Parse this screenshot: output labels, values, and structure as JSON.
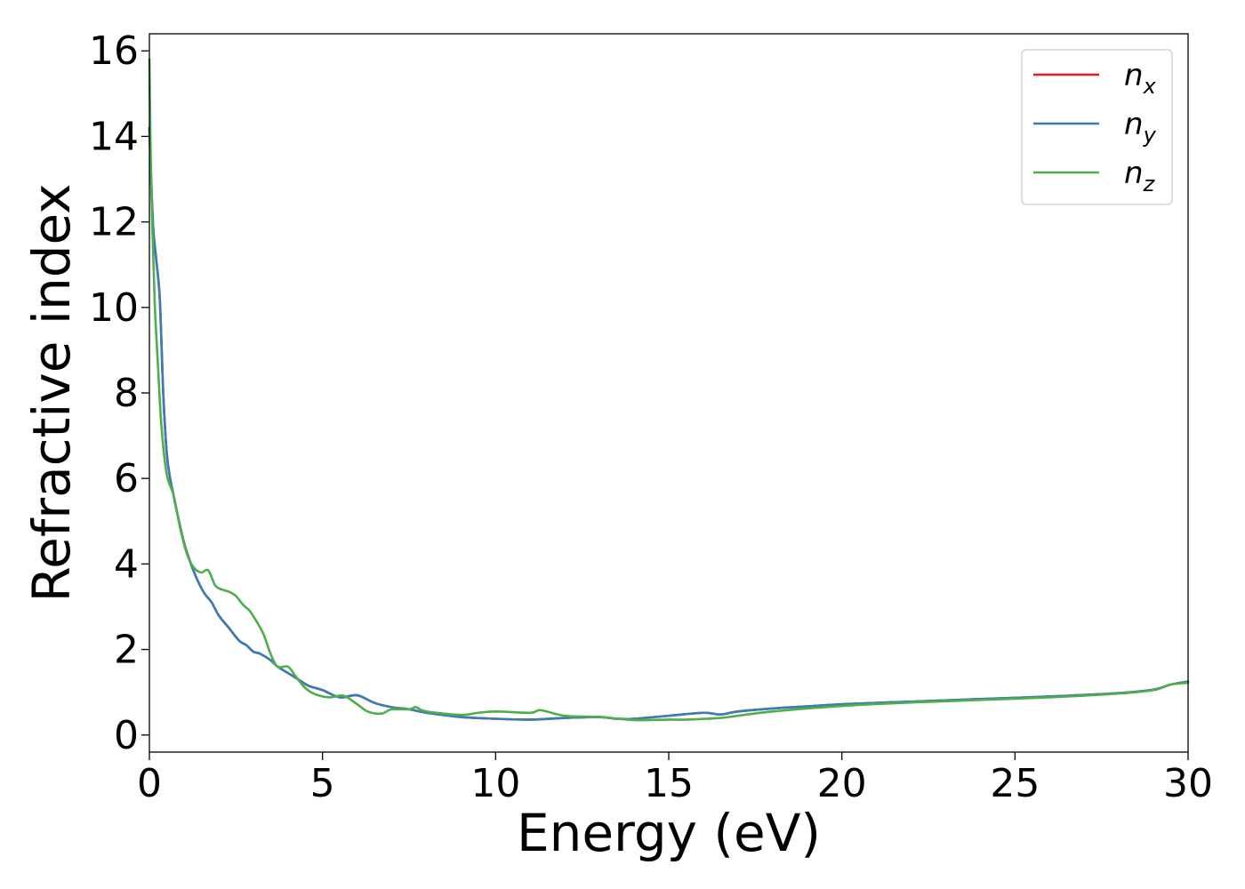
{
  "chart_data": {
    "type": "line",
    "xlabel": "Energy (eV)",
    "ylabel": "Refractive index",
    "xlim": [
      0,
      30
    ],
    "ylim": [
      -0.4,
      16.4
    ],
    "xticks": [
      0,
      5,
      10,
      15,
      20,
      25,
      30
    ],
    "yticks": [
      0,
      2,
      4,
      6,
      8,
      10,
      12,
      14,
      16
    ],
    "grid": false,
    "legend_position": "top-right",
    "series": [
      {
        "name": "n_x",
        "label_base": "n",
        "label_sub": "x",
        "color": "#e41a1c",
        "x": [
          0.0,
          0.1,
          0.2,
          0.3,
          0.4,
          0.5,
          0.6,
          0.7,
          0.8,
          1.0,
          1.2,
          1.4,
          1.6,
          1.8,
          2.0,
          2.3,
          2.6,
          2.8,
          3.0,
          3.2,
          3.5,
          3.7,
          4.0,
          4.3,
          4.6,
          5.0,
          5.5,
          6.0,
          6.5,
          7.0,
          7.5,
          8.0,
          9.0,
          10.0,
          11.0,
          12.0,
          13.0,
          13.5,
          14.0,
          15.0,
          16.0,
          16.5,
          17.0,
          18.0,
          19.0,
          20.0,
          22.0,
          24.0,
          26.0,
          28.0,
          29.0,
          29.5,
          30.0
        ],
        "y": [
          14.2,
          12.0,
          11.1,
          10.2,
          8.0,
          6.6,
          6.0,
          5.6,
          5.2,
          4.5,
          4.0,
          3.6,
          3.3,
          3.1,
          2.8,
          2.5,
          2.2,
          2.1,
          1.95,
          1.9,
          1.75,
          1.6,
          1.45,
          1.3,
          1.15,
          1.05,
          0.88,
          0.93,
          0.75,
          0.65,
          0.6,
          0.52,
          0.42,
          0.38,
          0.36,
          0.4,
          0.42,
          0.38,
          0.38,
          0.45,
          0.52,
          0.48,
          0.55,
          0.62,
          0.67,
          0.72,
          0.78,
          0.84,
          0.9,
          0.98,
          1.06,
          1.18,
          1.25
        ]
      },
      {
        "name": "n_y",
        "label_base": "n",
        "label_sub": "y",
        "color": "#377eb8",
        "x": [
          0.0,
          0.1,
          0.2,
          0.3,
          0.4,
          0.5,
          0.6,
          0.7,
          0.8,
          1.0,
          1.2,
          1.4,
          1.6,
          1.8,
          2.0,
          2.3,
          2.6,
          2.8,
          3.0,
          3.2,
          3.5,
          3.7,
          4.0,
          4.3,
          4.6,
          5.0,
          5.5,
          6.0,
          6.5,
          7.0,
          7.5,
          8.0,
          9.0,
          10.0,
          11.0,
          12.0,
          13.0,
          13.5,
          14.0,
          15.0,
          16.0,
          16.5,
          17.0,
          18.0,
          19.0,
          20.0,
          22.0,
          24.0,
          26.0,
          28.0,
          29.0,
          29.5,
          30.0
        ],
        "y": [
          14.2,
          12.0,
          11.1,
          10.2,
          8.0,
          6.6,
          6.0,
          5.6,
          5.2,
          4.5,
          4.0,
          3.6,
          3.3,
          3.1,
          2.8,
          2.5,
          2.2,
          2.1,
          1.95,
          1.9,
          1.75,
          1.6,
          1.45,
          1.3,
          1.15,
          1.05,
          0.88,
          0.93,
          0.75,
          0.65,
          0.6,
          0.52,
          0.42,
          0.38,
          0.36,
          0.4,
          0.42,
          0.38,
          0.38,
          0.45,
          0.52,
          0.48,
          0.55,
          0.62,
          0.67,
          0.72,
          0.78,
          0.84,
          0.9,
          0.98,
          1.06,
          1.18,
          1.25
        ]
      },
      {
        "name": "n_z",
        "label_base": "n",
        "label_sub": "z",
        "color": "#4daf4a",
        "x": [
          0.0,
          0.05,
          0.15,
          0.25,
          0.35,
          0.5,
          0.7,
          0.9,
          1.1,
          1.3,
          1.5,
          1.7,
          1.9,
          2.1,
          2.3,
          2.5,
          2.7,
          2.9,
          3.1,
          3.3,
          3.5,
          3.7,
          4.0,
          4.2,
          4.5,
          4.8,
          5.2,
          5.6,
          6.0,
          6.3,
          6.7,
          7.0,
          7.5,
          7.7,
          8.0,
          9.0,
          9.5,
          10.0,
          11.0,
          11.3,
          12.0,
          13.0,
          14.0,
          15.0,
          15.5,
          16.5,
          17.0,
          18.0,
          20.0,
          22.0,
          24.0,
          26.0,
          28.0,
          29.0,
          29.5,
          30.0
        ],
        "y": [
          15.8,
          13.0,
          10.2,
          8.6,
          7.2,
          6.1,
          5.6,
          4.8,
          4.2,
          3.9,
          3.8,
          3.85,
          3.5,
          3.4,
          3.35,
          3.25,
          3.05,
          2.9,
          2.65,
          2.35,
          1.9,
          1.6,
          1.6,
          1.4,
          1.1,
          0.95,
          0.88,
          0.92,
          0.72,
          0.55,
          0.5,
          0.6,
          0.6,
          0.65,
          0.55,
          0.47,
          0.52,
          0.55,
          0.52,
          0.58,
          0.45,
          0.42,
          0.35,
          0.36,
          0.36,
          0.4,
          0.45,
          0.55,
          0.68,
          0.76,
          0.82,
          0.88,
          0.97,
          1.05,
          1.18,
          1.22
        ]
      }
    ]
  }
}
